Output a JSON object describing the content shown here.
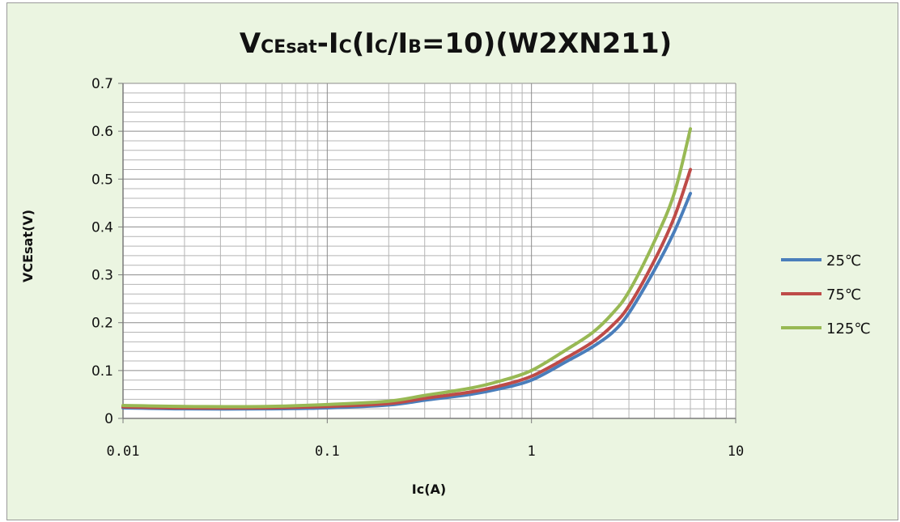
{
  "chart_data": {
    "type": "line",
    "title": "VCEsat-Ic(Ic/IB=10)(W2XN211)",
    "title_parts": [
      {
        "text": "V",
        "sub": false
      },
      {
        "text": "CEsat",
        "sub": true
      },
      {
        "text": "-I",
        "sub": false
      },
      {
        "text": "C",
        "sub": true
      },
      {
        "text": "(I",
        "sub": false
      },
      {
        "text": "C",
        "sub": true
      },
      {
        "text": "/I",
        "sub": false
      },
      {
        "text": "B",
        "sub": true
      },
      {
        "text": "=10)(W2XN211)",
        "sub": false
      }
    ],
    "xlabel": "Ic(A)",
    "ylabel": "VCEsat(V)",
    "x_scale": "log",
    "xlim": [
      0.01,
      10
    ],
    "ylim": [
      0,
      0.7
    ],
    "x_ticks": [
      "0.01",
      "0.1",
      "1",
      "10"
    ],
    "y_ticks": [
      "0",
      "0.1",
      "0.2",
      "0.3",
      "0.4",
      "0.5",
      "0.6",
      "0.7"
    ],
    "grid": true,
    "legend_position": "right",
    "x": [
      0.01,
      0.02,
      0.05,
      0.1,
      0.2,
      0.3,
      0.5,
      0.7,
      1,
      1.5,
      2,
      2.5,
      3,
      4,
      5,
      6
    ],
    "series": [
      {
        "name": "25℃",
        "color": "#4a7ebb",
        "values": [
          0.022,
          0.02,
          0.02,
          0.022,
          0.028,
          0.038,
          0.05,
          0.062,
          0.08,
          0.12,
          0.15,
          0.18,
          0.22,
          0.31,
          0.39,
          0.47
        ]
      },
      {
        "name": "75℃",
        "color": "#be4b48",
        "values": [
          0.024,
          0.022,
          0.022,
          0.025,
          0.031,
          0.042,
          0.055,
          0.068,
          0.088,
          0.128,
          0.16,
          0.195,
          0.235,
          0.33,
          0.42,
          0.52
        ]
      },
      {
        "name": "125℃",
        "color": "#98b954",
        "values": [
          0.027,
          0.025,
          0.025,
          0.029,
          0.036,
          0.048,
          0.063,
          0.078,
          0.1,
          0.145,
          0.18,
          0.22,
          0.265,
          0.37,
          0.47,
          0.605
        ]
      }
    ]
  }
}
